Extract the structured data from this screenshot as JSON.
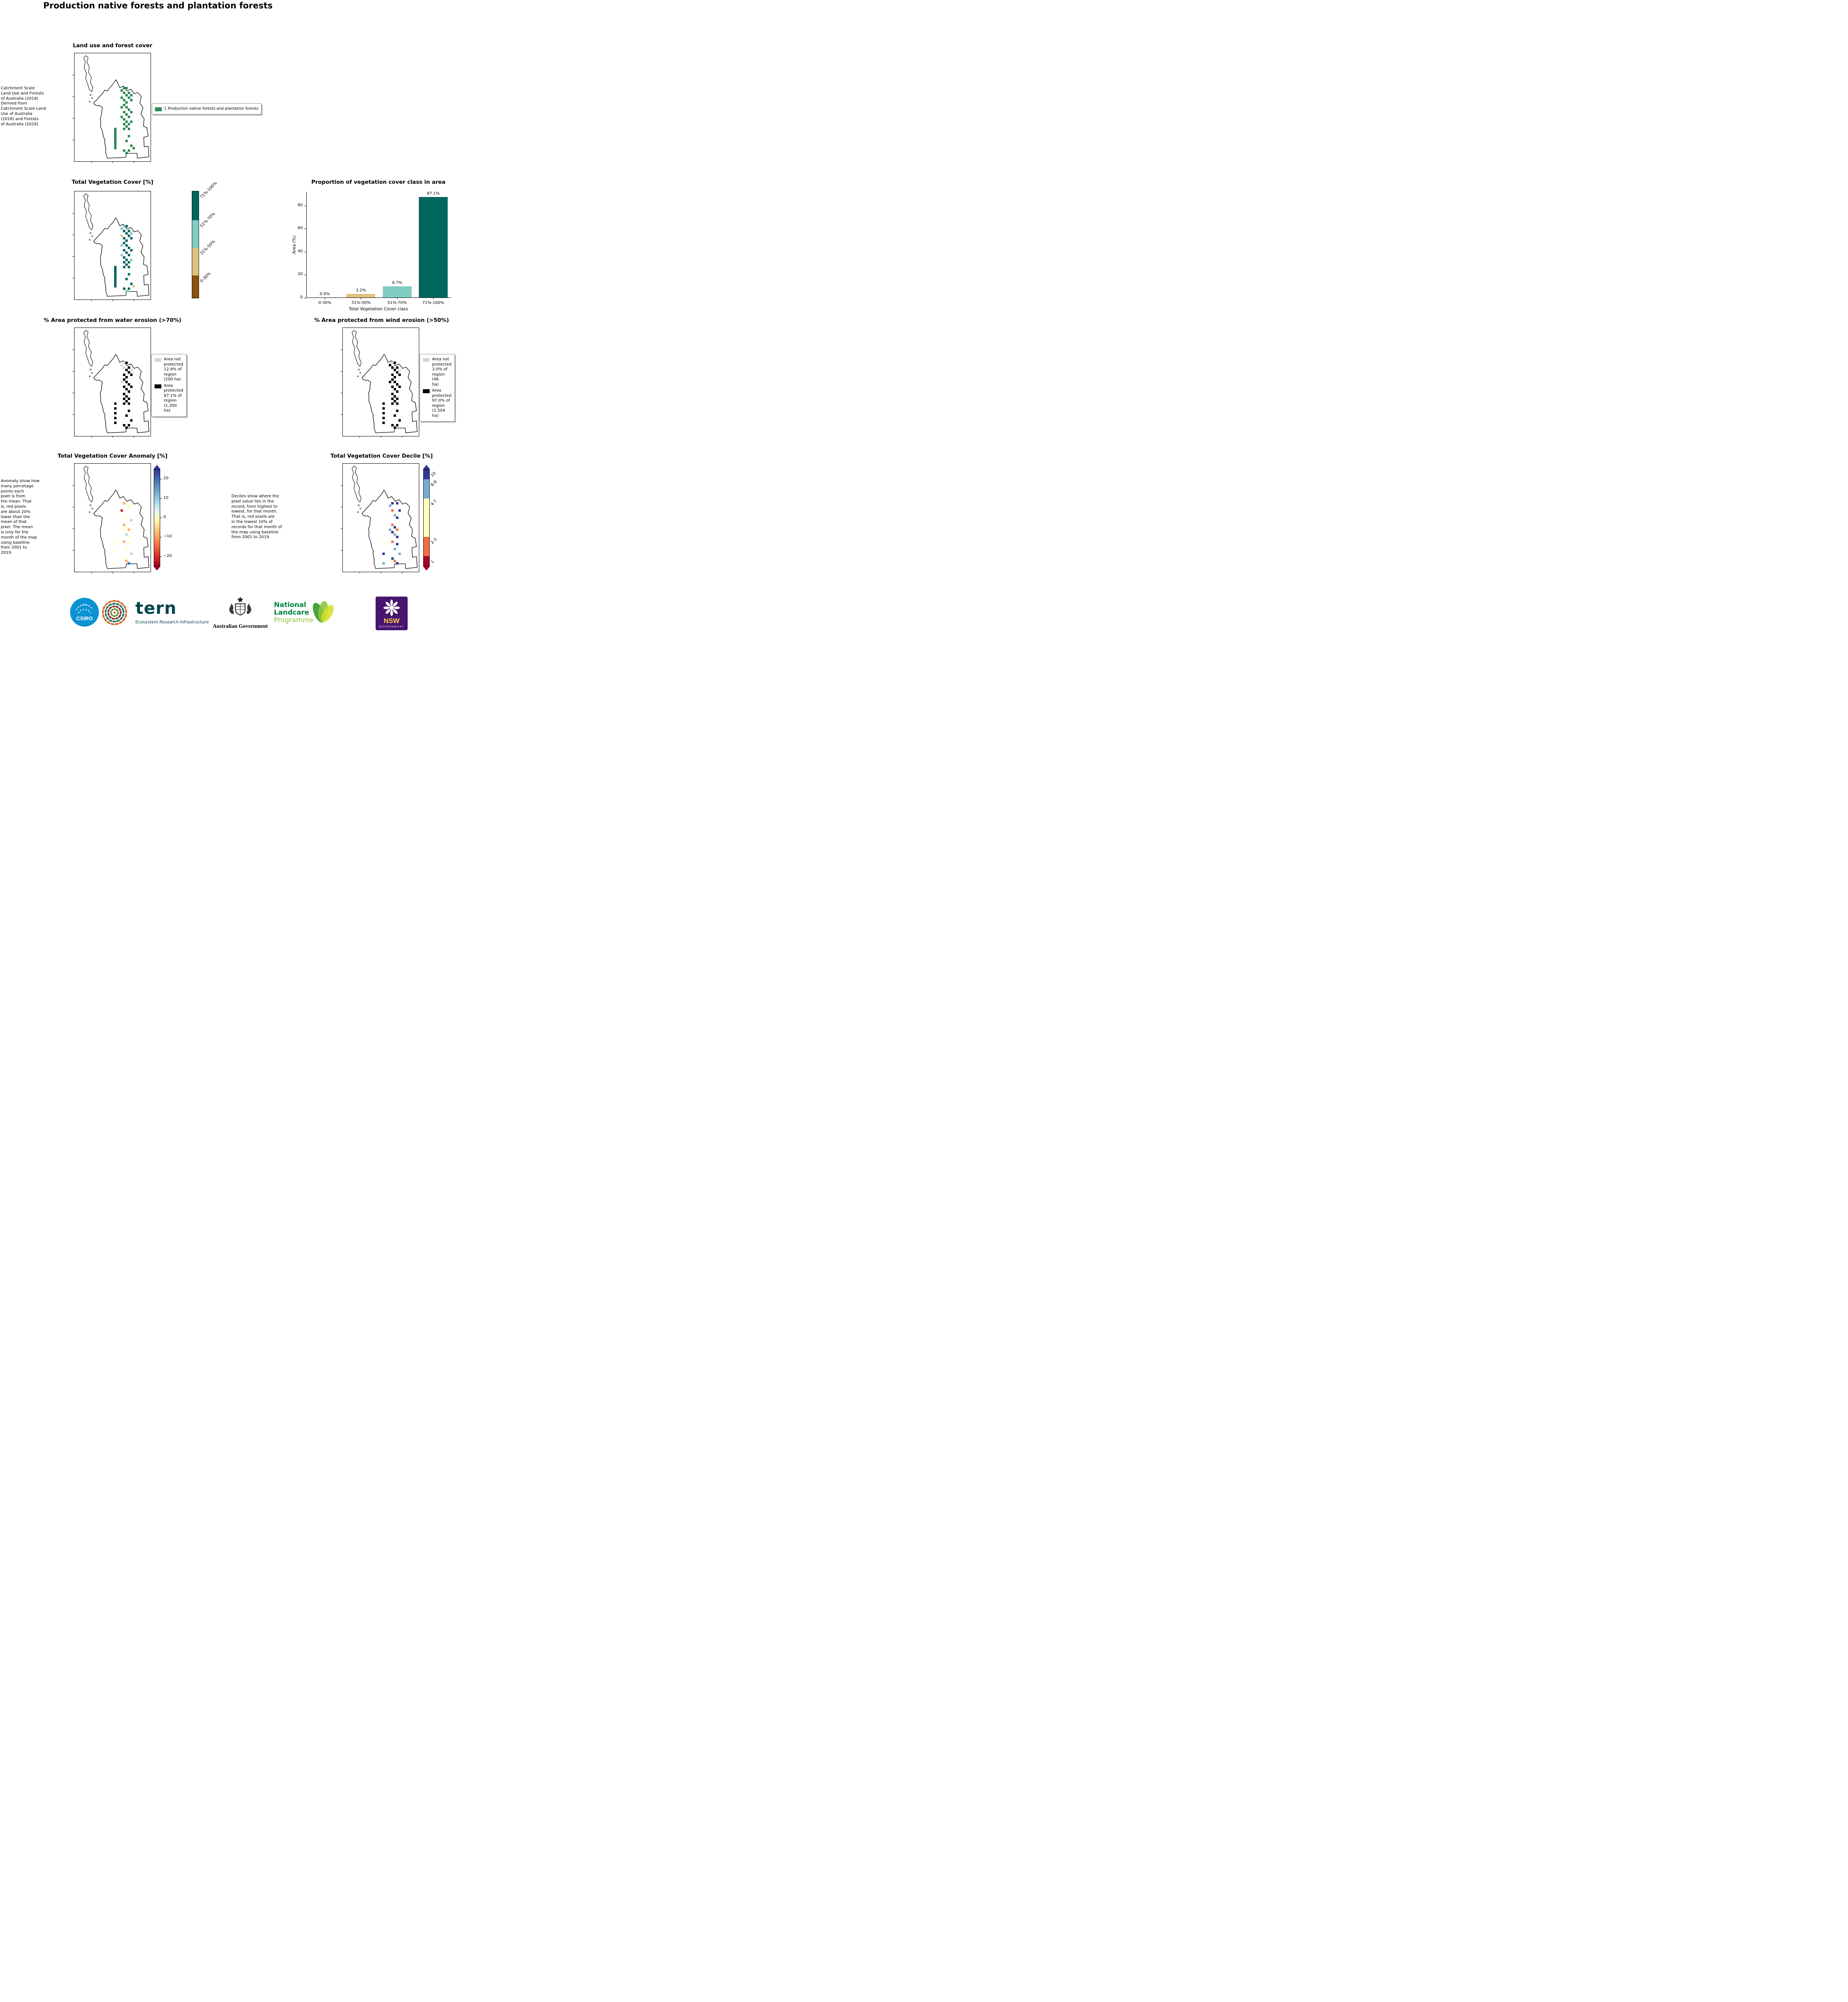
{
  "page_title": "Production native forests and plantation forests",
  "palette": {
    "green": "#2e8b57",
    "tealDark": "#01665e",
    "tealLight": "#80cdc1",
    "tan": "#dfc27d",
    "brown": "#8c510a",
    "black": "#000000",
    "gray": "#d6d6d6",
    "orange": "#fdae61",
    "red": "#d7191c",
    "paleYellow": "#ffffbf",
    "lightBlue": "#abd9e9",
    "blue": "#2c7bb6",
    "darkBlue": "#313695",
    "midBlue": "#74add1",
    "orangeRed": "#f46d43",
    "darkRed": "#a50026"
  },
  "panels": {
    "landuse": {
      "title": "Land use and forest cover",
      "side_text": " Catchment Scale\nLand Use and Forests\nof Australia (2018)\nDerived from\nCatchment Scale Land\nUse of Australia\n(2018) and Forests\nof Australia (2018)",
      "legend_label": "1 Production native forests and plantation forests",
      "legend_color": "green",
      "pixels": [
        [
          121,
          84,
          "green"
        ],
        [
          127,
          84,
          "green"
        ],
        [
          115,
          90,
          "green"
        ],
        [
          133,
          96,
          "green"
        ],
        [
          121,
          96,
          "green"
        ],
        [
          127,
          102,
          "green"
        ],
        [
          139,
          102,
          "green"
        ],
        [
          115,
          108,
          "green"
        ],
        [
          133,
          108,
          "green"
        ],
        [
          121,
          114,
          "green"
        ],
        [
          139,
          114,
          "green"
        ],
        [
          127,
          120,
          "green"
        ],
        [
          121,
          126,
          "green"
        ],
        [
          115,
          132,
          "green"
        ],
        [
          127,
          132,
          "green"
        ],
        [
          133,
          138,
          "green"
        ],
        [
          121,
          144,
          "green"
        ],
        [
          139,
          144,
          "green"
        ],
        [
          127,
          150,
          "green"
        ],
        [
          115,
          156,
          "green"
        ],
        [
          133,
          156,
          "green"
        ],
        [
          121,
          162,
          "green"
        ],
        [
          127,
          168,
          "green"
        ],
        [
          139,
          168,
          "green"
        ],
        [
          121,
          174,
          "green"
        ],
        [
          133,
          174,
          "green"
        ],
        [
          127,
          180,
          "green"
        ],
        [
          99,
          186,
          "green"
        ],
        [
          121,
          186,
          "green"
        ],
        [
          133,
          186,
          "green"
        ],
        [
          99,
          192,
          "green"
        ],
        [
          99,
          198,
          "green"
        ],
        [
          99,
          204,
          "green"
        ],
        [
          99,
          210,
          "green"
        ],
        [
          99,
          216,
          "green"
        ],
        [
          99,
          222,
          "green"
        ],
        [
          99,
          228,
          "green"
        ],
        [
          99,
          234,
          "green"
        ],
        [
          133,
          204,
          "green"
        ],
        [
          127,
          216,
          "green"
        ],
        [
          139,
          228,
          "green"
        ],
        [
          121,
          240,
          "green"
        ],
        [
          133,
          240,
          "green"
        ],
        [
          145,
          234,
          "green"
        ],
        [
          127,
          246,
          "green"
        ]
      ]
    },
    "vegcover": {
      "title": "Total Vegetation Cover [%]",
      "colorbar": [
        {
          "label": "71%-100%",
          "color": "#01665e",
          "frac": 0.27
        },
        {
          "label": "51%-70%",
          "color": "#80cdc1",
          "frac": 0.26
        },
        {
          "label": "31%-50%",
          "color": "#dfc27d",
          "frac": 0.26
        },
        {
          "label": "0-30%",
          "color": "#8c510a",
          "frac": 0.21
        }
      ],
      "pixels": [
        [
          121,
          84,
          "tealLight"
        ],
        [
          127,
          84,
          "tealDark"
        ],
        [
          115,
          90,
          "tealLight"
        ],
        [
          133,
          96,
          "tealDark"
        ],
        [
          121,
          96,
          "tealDark"
        ],
        [
          127,
          102,
          "tealDark"
        ],
        [
          139,
          102,
          "tealLight"
        ],
        [
          115,
          108,
          "tan"
        ],
        [
          133,
          108,
          "tealDark"
        ],
        [
          121,
          114,
          "tealDark"
        ],
        [
          139,
          114,
          "tealDark"
        ],
        [
          127,
          120,
          "tealDark"
        ],
        [
          121,
          126,
          "tealDark"
        ],
        [
          115,
          132,
          "tealLight"
        ],
        [
          127,
          132,
          "tealDark"
        ],
        [
          133,
          138,
          "tealDark"
        ],
        [
          121,
          144,
          "tealDark"
        ],
        [
          139,
          144,
          "tealDark"
        ],
        [
          127,
          150,
          "tealDark"
        ],
        [
          115,
          156,
          "tealLight"
        ],
        [
          133,
          156,
          "tealDark"
        ],
        [
          121,
          162,
          "tealDark"
        ],
        [
          127,
          168,
          "tealDark"
        ],
        [
          139,
          168,
          "tealLight"
        ],
        [
          121,
          174,
          "tealDark"
        ],
        [
          133,
          174,
          "tealDark"
        ],
        [
          127,
          180,
          "tealDark"
        ],
        [
          99,
          186,
          "tealDark"
        ],
        [
          121,
          186,
          "tealDark"
        ],
        [
          133,
          186,
          "tealDark"
        ],
        [
          99,
          192,
          "tealDark"
        ],
        [
          99,
          198,
          "tealDark"
        ],
        [
          99,
          204,
          "tealDark"
        ],
        [
          99,
          210,
          "tealDark"
        ],
        [
          99,
          216,
          "tealDark"
        ],
        [
          99,
          222,
          "tealDark"
        ],
        [
          99,
          228,
          "tealDark"
        ],
        [
          99,
          234,
          "tealDark"
        ],
        [
          133,
          204,
          "tealDark"
        ],
        [
          127,
          216,
          "tealDark"
        ],
        [
          139,
          228,
          "tealDark"
        ],
        [
          121,
          240,
          "tealDark"
        ],
        [
          133,
          240,
          "tealDark"
        ],
        [
          145,
          234,
          "tan"
        ],
        [
          127,
          246,
          "tealLight"
        ]
      ]
    },
    "water": {
      "title": "% Area protected from water erosion (>70%)",
      "legend": {
        "not_protected": {
          "color": "#d6d6d6",
          "text": "Area not\nprotected\n12.9% of\nregion\n(200 ha)"
        },
        "protected": {
          "color": "#000000",
          "text": "Area\nprotected\n87.1% of\nregion\n(1,350 ha)"
        }
      },
      "pixels": [
        [
          121,
          84,
          "gray"
        ],
        [
          127,
          84,
          "black"
        ],
        [
          115,
          90,
          "gray"
        ],
        [
          133,
          96,
          "black"
        ],
        [
          121,
          96,
          "gray"
        ],
        [
          127,
          102,
          "black"
        ],
        [
          139,
          102,
          "gray"
        ],
        [
          133,
          108,
          "black"
        ],
        [
          121,
          114,
          "black"
        ],
        [
          139,
          114,
          "black"
        ],
        [
          127,
          120,
          "black"
        ],
        [
          121,
          126,
          "black"
        ],
        [
          115,
          132,
          "gray"
        ],
        [
          127,
          132,
          "black"
        ],
        [
          133,
          138,
          "black"
        ],
        [
          121,
          144,
          "black"
        ],
        [
          139,
          144,
          "black"
        ],
        [
          127,
          150,
          "black"
        ],
        [
          133,
          156,
          "black"
        ],
        [
          121,
          162,
          "black"
        ],
        [
          127,
          168,
          "black"
        ],
        [
          121,
          174,
          "black"
        ],
        [
          133,
          174,
          "black"
        ],
        [
          127,
          180,
          "black"
        ],
        [
          99,
          186,
          "black"
        ],
        [
          121,
          186,
          "black"
        ],
        [
          133,
          186,
          "black"
        ],
        [
          99,
          198,
          "black"
        ],
        [
          99,
          210,
          "black"
        ],
        [
          99,
          222,
          "black"
        ],
        [
          99,
          234,
          "black"
        ],
        [
          133,
          204,
          "black"
        ],
        [
          127,
          216,
          "black"
        ],
        [
          139,
          228,
          "black"
        ],
        [
          121,
          240,
          "black"
        ],
        [
          133,
          240,
          "black"
        ],
        [
          127,
          246,
          "black"
        ]
      ]
    },
    "wind": {
      "title": "% Area protected from wind erosion (>50%)",
      "legend": {
        "not_protected": {
          "color": "#d6d6d6",
          "text": "Area not\nprotected\n3.0% of\nregion (46\nha)"
        },
        "protected": {
          "color": "#000000",
          "text": "Area\nprotected\n97.0% of\nregion\n(1,504 ha)"
        }
      },
      "pixels": [
        [
          121,
          84,
          "gray"
        ],
        [
          127,
          84,
          "black"
        ],
        [
          115,
          90,
          "black"
        ],
        [
          133,
          96,
          "black"
        ],
        [
          121,
          96,
          "black"
        ],
        [
          127,
          102,
          "black"
        ],
        [
          139,
          102,
          "gray"
        ],
        [
          133,
          108,
          "black"
        ],
        [
          121,
          114,
          "black"
        ],
        [
          139,
          114,
          "black"
        ],
        [
          127,
          120,
          "black"
        ],
        [
          121,
          126,
          "black"
        ],
        [
          115,
          132,
          "black"
        ],
        [
          127,
          132,
          "black"
        ],
        [
          133,
          138,
          "black"
        ],
        [
          121,
          144,
          "black"
        ],
        [
          139,
          144,
          "black"
        ],
        [
          127,
          150,
          "black"
        ],
        [
          133,
          156,
          "black"
        ],
        [
          121,
          162,
          "black"
        ],
        [
          127,
          168,
          "black"
        ],
        [
          121,
          174,
          "black"
        ],
        [
          133,
          174,
          "black"
        ],
        [
          127,
          180,
          "black"
        ],
        [
          99,
          186,
          "black"
        ],
        [
          121,
          186,
          "black"
        ],
        [
          133,
          186,
          "black"
        ],
        [
          99,
          198,
          "black"
        ],
        [
          99,
          210,
          "black"
        ],
        [
          99,
          222,
          "black"
        ],
        [
          99,
          234,
          "black"
        ],
        [
          133,
          204,
          "black"
        ],
        [
          127,
          216,
          "black"
        ],
        [
          139,
          228,
          "black"
        ],
        [
          121,
          240,
          "black"
        ],
        [
          133,
          240,
          "black"
        ],
        [
          127,
          246,
          "black"
        ]
      ]
    },
    "anomaly": {
      "title": "Total Vegetation Cover Anomaly [%]",
      "side_text": "Anomaly show how\nmany percetage\npoints each\npixel is from\nthe mean. That\nis, red pixels\nare about 20%\nlower than the\nmean of that\npixel. The mean\nis only for the\nmonth of the map\nusing baseline\nfrom 2001 to\n2019.",
      "ticks": [
        20,
        10,
        0,
        -10,
        -20
      ],
      "range": [
        -25,
        25
      ],
      "pixels": [
        [
          121,
          96,
          "orange"
        ],
        [
          133,
          102,
          "paleYellow"
        ],
        [
          115,
          114,
          "red"
        ],
        [
          133,
          108,
          "paleYellow"
        ],
        [
          127,
          132,
          "paleYellow"
        ],
        [
          139,
          138,
          "lightBlue"
        ],
        [
          121,
          150,
          "orange"
        ],
        [
          127,
          156,
          "paleYellow"
        ],
        [
          115,
          162,
          "paleYellow"
        ],
        [
          133,
          162,
          "orange"
        ],
        [
          121,
          168,
          "paleYellow"
        ],
        [
          127,
          174,
          "lightBlue"
        ],
        [
          133,
          180,
          "paleYellow"
        ],
        [
          99,
          192,
          "paleYellow"
        ],
        [
          121,
          192,
          "orange"
        ],
        [
          133,
          198,
          "paleYellow"
        ],
        [
          127,
          210,
          "paleYellow"
        ],
        [
          99,
          216,
          "paleYellow"
        ],
        [
          139,
          222,
          "lightBlue"
        ],
        [
          121,
          234,
          "paleYellow"
        ],
        [
          127,
          240,
          "orange"
        ],
        [
          99,
          246,
          "paleYellow"
        ],
        [
          133,
          246,
          "blue"
        ]
      ]
    },
    "decile": {
      "title": "Total Vegetation Cover Decile [%]",
      "side_text": "Deciles show where the\npixel value lies in the\nrecord, from highest to\nlowest, for that month.\nThat is, red pixels are\nin the lowest 10% of\nrecords for that month of\nthe map using baseline\nfrom 2001 to 2019.",
      "colorbar": [
        {
          "label": "10",
          "color": "#313695",
          "frac": 0.1
        },
        {
          "label": "8-9",
          "color": "#74add1",
          "frac": 0.2
        },
        {
          "label": "4-7",
          "color": "#ffffbf",
          "frac": 0.4
        },
        {
          "label": "2-3",
          "color": "#f46d43",
          "frac": 0.2
        },
        {
          "label": "1",
          "color": "#a50026",
          "frac": 0.1
        }
      ],
      "pixels": [
        [
          121,
          96,
          "darkBlue"
        ],
        [
          115,
          102,
          "midBlue"
        ],
        [
          133,
          96,
          "darkBlue"
        ],
        [
          139,
          114,
          "darkBlue"
        ],
        [
          121,
          114,
          "orangeRed"
        ],
        [
          127,
          126,
          "midBlue"
        ],
        [
          133,
          132,
          "darkBlue"
        ],
        [
          121,
          150,
          "orangeRed"
        ],
        [
          127,
          156,
          "darkBlue"
        ],
        [
          115,
          162,
          "midBlue"
        ],
        [
          133,
          162,
          "orangeRed"
        ],
        [
          121,
          168,
          "darkBlue"
        ],
        [
          127,
          174,
          "midBlue"
        ],
        [
          133,
          180,
          "darkBlue"
        ],
        [
          99,
          192,
          "paleYellow"
        ],
        [
          121,
          192,
          "orangeRed"
        ],
        [
          133,
          198,
          "darkBlue"
        ],
        [
          127,
          210,
          "midBlue"
        ],
        [
          99,
          222,
          "darkBlue"
        ],
        [
          139,
          222,
          "midBlue"
        ],
        [
          121,
          234,
          "darkBlue"
        ],
        [
          127,
          240,
          "orangeRed"
        ],
        [
          99,
          246,
          "midBlue"
        ],
        [
          133,
          246,
          "darkBlue"
        ]
      ]
    }
  },
  "chart_data": {
    "type": "bar",
    "title": "Proportion of vegetation cover class in area",
    "categories": [
      "0-30%",
      "31%-50%",
      "51%-70%",
      "71%-100%"
    ],
    "values": [
      0.0,
      3.2,
      9.7,
      87.1
    ],
    "bar_labels": [
      "0.0%",
      "3.2%",
      "9.7%",
      "87.1%"
    ],
    "bar_colors": [
      "#8c510a",
      "#dfc27d",
      "#80cdc1",
      "#01665e"
    ],
    "xlabel": "Total Vegetation Cover class",
    "ylabel": "Area (%)",
    "yticks": [
      0,
      20,
      40,
      60,
      80
    ],
    "ylim": [
      0,
      92
    ],
    "grid": false,
    "legend_position": "none"
  },
  "footer": {
    "csiro_label": "CSIRO",
    "tern_label": "tern",
    "tern_subtitle": "Ecosystem Research Infrastructure",
    "aus_gov_label": "Australian Government",
    "landcare_line1": "National",
    "landcare_line2": "Landcare",
    "landcare_line3": "Programme",
    "nsw_label": "NSW",
    "nsw_subtitle": "GOVERNMENT"
  }
}
